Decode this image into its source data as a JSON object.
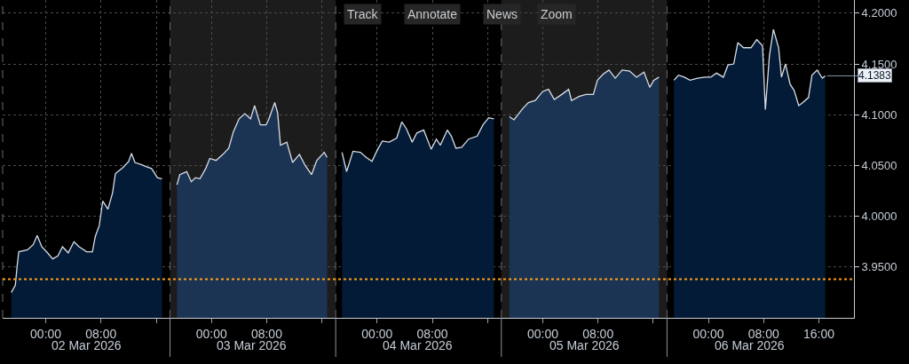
{
  "chart_data": {
    "type": "area",
    "series": [
      {
        "name": "02 Mar 2026",
        "color": "#031b37",
        "x": [
          "2026-03-01T19:00",
          "2026-03-01T19:35",
          "2026-03-01T19:50",
          "2026-03-01T20:05",
          "2026-03-01T21:20",
          "2026-03-01T22:10",
          "2026-03-01T22:45",
          "2026-03-01T23:25",
          "2026-03-02T00:15",
          "2026-03-02T01:00",
          "2026-03-02T01:45",
          "2026-03-02T02:25",
          "2026-03-02T03:15",
          "2026-03-02T04:05",
          "2026-03-02T04:50",
          "2026-03-02T05:55",
          "2026-03-02T06:45",
          "2026-03-02T07:10",
          "2026-03-02T07:45",
          "2026-03-02T08:15",
          "2026-03-02T09:00",
          "2026-03-02T09:40",
          "2026-03-02T10:05",
          "2026-03-02T11:10",
          "2026-03-02T12:00",
          "2026-03-02T12:25",
          "2026-03-02T12:55",
          "2026-03-02T13:50",
          "2026-03-02T14:30",
          "2026-03-02T15:20",
          "2026-03-02T16:10",
          "2026-03-02T16:50"
        ],
        "values": [
          3.925,
          3.932,
          3.95,
          3.965,
          3.967,
          3.972,
          3.981,
          3.97,
          3.964,
          3.958,
          3.961,
          3.97,
          3.964,
          3.975,
          3.97,
          3.965,
          3.965,
          3.98,
          3.991,
          4.015,
          4.007,
          4.023,
          4.042,
          4.048,
          4.054,
          4.062,
          4.053,
          4.051,
          4.049,
          4.047,
          4.038,
          4.037
        ]
      },
      {
        "name": "03 Mar 2026",
        "color": "#1c3453",
        "x": [
          "2026-03-02T19:00",
          "2026-03-02T19:25",
          "2026-03-02T20:25",
          "2026-03-02T21:05",
          "2026-03-02T21:40",
          "2026-03-02T22:20",
          "2026-03-02T23:10",
          "2026-03-02T23:45",
          "2026-03-03T00:40",
          "2026-03-03T01:40",
          "2026-03-03T02:30",
          "2026-03-03T03:10",
          "2026-03-03T04:00",
          "2026-03-03T04:50",
          "2026-03-03T05:40",
          "2026-03-03T06:15",
          "2026-03-03T07:05",
          "2026-03-03T07:55",
          "2026-03-03T08:20",
          "2026-03-03T09:10",
          "2026-03-03T09:35",
          "2026-03-03T10:00",
          "2026-03-03T10:55",
          "2026-03-03T11:45",
          "2026-03-03T12:45",
          "2026-03-03T13:35",
          "2026-03-03T14:30",
          "2026-03-03T15:15",
          "2026-03-03T16:20",
          "2026-03-03T16:45"
        ],
        "values": [
          4.031,
          4.041,
          4.044,
          4.034,
          4.038,
          4.037,
          4.047,
          4.057,
          4.055,
          4.061,
          4.067,
          4.083,
          4.096,
          4.101,
          4.096,
          4.109,
          4.09,
          4.09,
          4.096,
          4.112,
          4.102,
          4.07,
          4.073,
          4.053,
          4.061,
          4.05,
          4.041,
          4.055,
          4.063,
          4.058
        ]
      },
      {
        "name": "04 Mar 2026",
        "color": "#031b37",
        "x": [
          "2026-03-03T18:55",
          "2026-03-03T19:35",
          "2026-03-03T20:30",
          "2026-03-03T21:35",
          "2026-03-03T22:25",
          "2026-03-03T23:15",
          "2026-03-04T00:05",
          "2026-03-04T00:45",
          "2026-03-04T01:45",
          "2026-03-04T02:50",
          "2026-03-04T03:35",
          "2026-03-04T04:15",
          "2026-03-04T05:05",
          "2026-03-04T05:45",
          "2026-03-04T06:45",
          "2026-03-04T07:50",
          "2026-03-04T08:35",
          "2026-03-04T09:10",
          "2026-03-04T10:10",
          "2026-03-04T10:45",
          "2026-03-04T11:25",
          "2026-03-04T12:15",
          "2026-03-04T13:15",
          "2026-03-04T14:30",
          "2026-03-04T15:20",
          "2026-03-04T16:10",
          "2026-03-04T16:55"
        ],
        "values": [
          4.063,
          4.044,
          4.064,
          4.063,
          4.058,
          4.054,
          4.066,
          4.074,
          4.073,
          4.077,
          4.093,
          4.086,
          4.073,
          4.082,
          4.085,
          4.066,
          4.076,
          4.07,
          4.085,
          4.079,
          4.067,
          4.068,
          4.076,
          4.079,
          4.09,
          4.097,
          4.096
        ]
      },
      {
        "name": "05 Mar 2026",
        "color": "#1c3453",
        "x": [
          "2026-03-04T19:10",
          "2026-03-04T19:50",
          "2026-03-04T21:05",
          "2026-03-04T21:55",
          "2026-03-04T22:55",
          "2026-03-05T00:00",
          "2026-03-05T00:50",
          "2026-03-05T01:40",
          "2026-03-05T02:45",
          "2026-03-05T03:45",
          "2026-03-05T04:10",
          "2026-03-05T05:15",
          "2026-03-05T06:15",
          "2026-03-05T07:20",
          "2026-03-05T07:55",
          "2026-03-05T08:45",
          "2026-03-05T09:35",
          "2026-03-05T10:30",
          "2026-03-05T11:30",
          "2026-03-05T12:35",
          "2026-03-05T13:35",
          "2026-03-05T14:40",
          "2026-03-05T15:30",
          "2026-03-05T16:05",
          "2026-03-05T16:50"
        ],
        "values": [
          4.098,
          4.095,
          4.106,
          4.112,
          4.114,
          4.123,
          4.125,
          4.115,
          4.12,
          4.125,
          4.114,
          4.118,
          4.12,
          4.12,
          4.134,
          4.14,
          4.144,
          4.136,
          4.144,
          4.143,
          4.137,
          4.142,
          4.127,
          4.134,
          4.137
        ]
      },
      {
        "name": "06 Mar 2026",
        "color": "#031b37",
        "x": [
          "2026-03-05T19:00",
          "2026-03-05T19:40",
          "2026-03-05T20:30",
          "2026-03-05T21:20",
          "2026-03-05T22:25",
          "2026-03-05T23:30",
          "2026-03-06T00:20",
          "2026-03-06T01:10",
          "2026-03-06T02:10",
          "2026-03-06T02:50",
          "2026-03-06T03:40",
          "2026-03-06T04:15",
          "2026-03-06T05:05",
          "2026-03-06T06:10",
          "2026-03-06T07:00",
          "2026-03-06T07:50",
          "2026-03-06T08:15",
          "2026-03-06T08:50",
          "2026-03-06T09:25",
          "2026-03-06T10:10",
          "2026-03-06T10:35",
          "2026-03-06T11:10",
          "2026-03-06T11:50",
          "2026-03-06T12:25",
          "2026-03-06T13:05",
          "2026-03-06T13:40",
          "2026-03-06T14:30",
          "2026-03-06T15:00",
          "2026-03-06T15:45",
          "2026-03-06T16:30",
          "2026-03-06T16:55"
        ],
        "values": [
          4.134,
          4.139,
          4.137,
          4.134,
          4.136,
          4.137,
          4.137,
          4.141,
          4.137,
          4.149,
          4.15,
          4.171,
          4.166,
          4.166,
          4.174,
          4.168,
          4.105,
          4.158,
          4.184,
          4.166,
          4.137,
          4.15,
          4.13,
          4.124,
          4.109,
          4.112,
          4.117,
          4.139,
          4.144,
          4.136,
          4.1383
        ]
      }
    ],
    "xlim": [
      "2026-03-01T17:45",
      "2026-03-06T21:05"
    ],
    "xticks": [
      {
        "value": "2026-03-02T00:00",
        "label": "00:00"
      },
      {
        "value": "2026-03-02T08:00",
        "label": "08:00"
      },
      {
        "value": "2026-03-02T16:00",
        "label": null
      },
      {
        "value": "2026-03-03T00:00",
        "label": "00:00"
      },
      {
        "value": "2026-03-03T08:00",
        "label": "08:00"
      },
      {
        "value": "2026-03-03T16:00",
        "label": null
      },
      {
        "value": "2026-03-04T00:00",
        "label": "00:00"
      },
      {
        "value": "2026-03-04T08:00",
        "label": "08:00"
      },
      {
        "value": "2026-03-04T16:00",
        "label": null
      },
      {
        "value": "2026-03-05T00:00",
        "label": "00:00"
      },
      {
        "value": "2026-03-05T08:00",
        "label": "08:00"
      },
      {
        "value": "2026-03-05T16:00",
        "label": null
      },
      {
        "value": "2026-03-06T00:00",
        "label": "00:00"
      },
      {
        "value": "2026-03-06T08:00",
        "label": "08:00"
      },
      {
        "value": "2026-03-06T16:00",
        "label": "16:00"
      }
    ],
    "ylim": [
      3.9,
      4.213
    ],
    "yticks": [
      {
        "value": 3.95,
        "label": "3.9500"
      },
      {
        "value": 4.0,
        "label": "4.0000"
      },
      {
        "value": 4.05,
        "label": "4.0500"
      },
      {
        "value": 4.1,
        "label": "4.1000"
      },
      {
        "value": 4.15,
        "label": "4.1500"
      },
      {
        "value": 4.2,
        "label": "4.2000"
      }
    ],
    "grid": true,
    "bands": [
      {
        "axis": "x",
        "from": "2026-03-02T18:00",
        "to": "2026-03-03T18:00",
        "color": "#1c1c1c"
      },
      {
        "axis": "x",
        "from": "2026-03-04T18:00",
        "to": "2026-03-05T18:00",
        "color": "#1c1c1c"
      }
    ],
    "ref_lines": [
      {
        "axis": "y",
        "value": 3.938,
        "color": "#ff9e1b",
        "line_style": "dotted"
      }
    ],
    "annotations": [
      "Track",
      "Annotate",
      "News",
      "Zoom",
      {
        "text": "4.1383",
        "x": "2026-03-06T16:55",
        "y": 4.1383
      }
    ]
  }
}
